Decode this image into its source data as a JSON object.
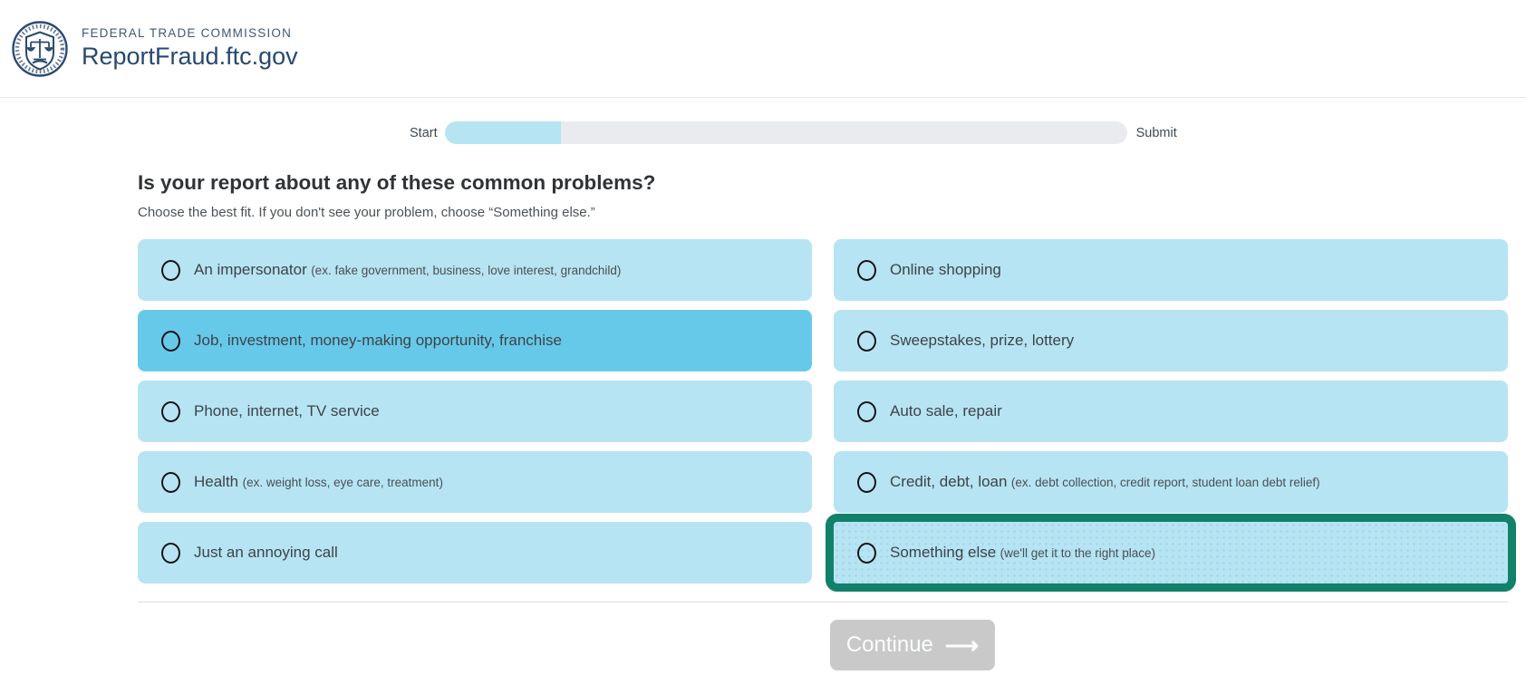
{
  "header": {
    "agency": "FEDERAL TRADE COMMISSION",
    "site": "ReportFraud.ftc.gov"
  },
  "progress": {
    "start_label": "Start",
    "end_label": "Submit",
    "percent": 17
  },
  "question": {
    "title": "Is your report about any of these common problems?",
    "subtitle": "Choose the best fit. If you don't see your problem, choose “Something else.”"
  },
  "options": [
    {
      "label": "An impersonator",
      "sublabel": "(ex. fake government, business, love interest, grandchild)",
      "state": "normal",
      "selected": false
    },
    {
      "label": "Online shopping",
      "sublabel": "",
      "state": "normal",
      "selected": false
    },
    {
      "label": "Job, investment, money-making opportunity, franchise",
      "sublabel": "",
      "state": "highlighted",
      "selected": false
    },
    {
      "label": "Sweepstakes, prize, lottery",
      "sublabel": "",
      "state": "normal",
      "selected": false
    },
    {
      "label": "Phone, internet, TV service",
      "sublabel": "",
      "state": "normal",
      "selected": false
    },
    {
      "label": "Auto sale, repair",
      "sublabel": "",
      "state": "normal",
      "selected": false
    },
    {
      "label": "Health",
      "sublabel": "(ex. weight loss, eye care, treatment)",
      "state": "normal",
      "selected": false
    },
    {
      "label": "Credit, debt, loan",
      "sublabel": "(ex. debt collection, credit report, student loan debt relief)",
      "state": "normal",
      "selected": false
    },
    {
      "label": "Just an annoying call",
      "sublabel": "",
      "state": "normal",
      "selected": false
    },
    {
      "label": "Something else",
      "sublabel": "(we'll get it to the right place)",
      "state": "green-outline",
      "selected": false
    }
  ],
  "continue_button": {
    "label": "Continue",
    "arrow": "⟶",
    "enabled": false
  },
  "colors": {
    "option_bg": "#b7e4f2",
    "option_bg_highlight": "#67c9e9",
    "green_outline": "#11816a",
    "progress_fill": "#b7e4f2",
    "progress_track": "#e9ebee",
    "navy": "#27496f",
    "navy_soft": "#3c5a76",
    "button_disabled": "#c9c9c9"
  }
}
